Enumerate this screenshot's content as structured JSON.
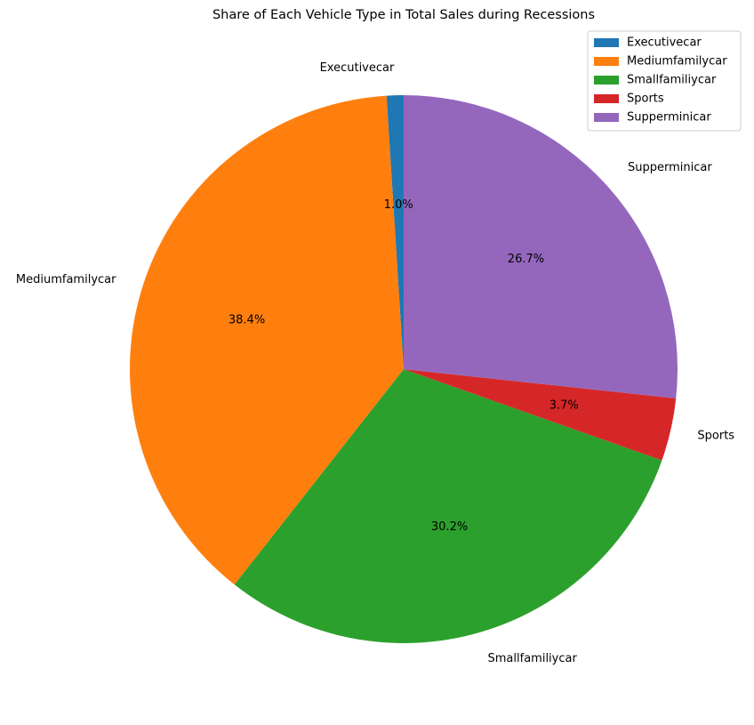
{
  "chart_data": {
    "type": "pie",
    "title": "Share of Each Vehicle Type in Total Sales during Recessions",
    "start_angle_deg": 90,
    "direction": "counterclockwise",
    "legend": "top-right",
    "slices": [
      {
        "name": "Executivecar",
        "value": 1.0,
        "label": "1.0%",
        "color": "#1f77b4"
      },
      {
        "name": "Mediumfamilycar",
        "value": 38.4,
        "label": "38.4%",
        "color": "#ff7f0e"
      },
      {
        "name": "Smallfamiliycar",
        "value": 30.2,
        "label": "30.2%",
        "color": "#2ca02c"
      },
      {
        "name": "Sports",
        "value": 3.7,
        "label": "3.7%",
        "color": "#d62728"
      },
      {
        "name": "Supperminicar",
        "value": 26.7,
        "label": "26.7%",
        "color": "#9467bd"
      }
    ]
  }
}
